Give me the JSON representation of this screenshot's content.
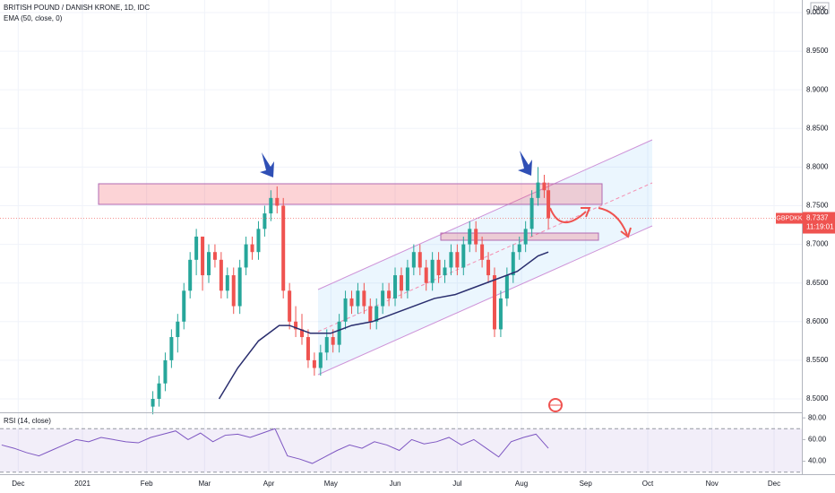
{
  "chart_data": {
    "type": "candlestick",
    "title": "BRITISH POUND / DANISH KRONE, 1D, IDC",
    "indicator": "EMA (50, close, 0)",
    "currency": "DKK",
    "symbol": "GBPDKK",
    "last_price": 8.7337,
    "countdown": "11:19:01",
    "up_color": "#26a69a",
    "down_color": "#ef5350",
    "grid": true,
    "xlim": [
      -39.8,
      347.4
    ],
    "xticks": [
      {
        "value": -31,
        "label": "Dec"
      },
      {
        "value": 0,
        "label": "2021"
      },
      {
        "value": 31,
        "label": "Feb"
      },
      {
        "value": 59,
        "label": "Mar"
      },
      {
        "value": 90,
        "label": "Apr"
      },
      {
        "value": 120,
        "label": "May"
      },
      {
        "value": 151,
        "label": "Jun"
      },
      {
        "value": 181,
        "label": "Jul"
      },
      {
        "value": 212,
        "label": "Aug"
      },
      {
        "value": 243,
        "label": "Sep"
      },
      {
        "value": 273,
        "label": "Oct"
      },
      {
        "value": 304,
        "label": "Nov"
      },
      {
        "value": 334,
        "label": "Dec"
      }
    ],
    "ylim": [
      8.4826,
      9.0162
    ],
    "yticks": [
      {
        "value": 8.5,
        "label": "8.5000"
      },
      {
        "value": 8.55,
        "label": "8.5500"
      },
      {
        "value": 8.6,
        "label": "8.6000"
      },
      {
        "value": 8.65,
        "label": "8.6500"
      },
      {
        "value": 8.7,
        "label": "8.7000"
      },
      {
        "value": 8.75,
        "label": "8.7500"
      },
      {
        "value": 8.8,
        "label": "8.8000"
      },
      {
        "value": 8.85,
        "label": "8.8500"
      },
      {
        "value": 8.9,
        "label": "8.9000"
      },
      {
        "value": 8.95,
        "label": "8.9500"
      },
      {
        "value": 9.0,
        "label": "9.0000"
      }
    ],
    "candles": [
      {
        "x": 34,
        "o": 8.49,
        "h": 8.51,
        "l": 8.48,
        "c": 8.5
      },
      {
        "x": 37,
        "o": 8.5,
        "h": 8.53,
        "l": 8.49,
        "c": 8.52
      },
      {
        "x": 40,
        "o": 8.52,
        "h": 8.56,
        "l": 8.51,
        "c": 8.55
      },
      {
        "x": 43,
        "o": 8.55,
        "h": 8.59,
        "l": 8.54,
        "c": 8.58
      },
      {
        "x": 46,
        "o": 8.58,
        "h": 8.61,
        "l": 8.56,
        "c": 8.6
      },
      {
        "x": 49,
        "o": 8.6,
        "h": 8.65,
        "l": 8.59,
        "c": 8.64
      },
      {
        "x": 52,
        "o": 8.64,
        "h": 8.69,
        "l": 8.63,
        "c": 8.68
      },
      {
        "x": 55,
        "o": 8.68,
        "h": 8.72,
        "l": 8.66,
        "c": 8.71
      },
      {
        "x": 58,
        "o": 8.71,
        "h": 8.71,
        "l": 8.64,
        "c": 8.66
      },
      {
        "x": 61,
        "o": 8.66,
        "h": 8.7,
        "l": 8.65,
        "c": 8.69
      },
      {
        "x": 64,
        "o": 8.69,
        "h": 8.7,
        "l": 8.67,
        "c": 8.68
      },
      {
        "x": 67,
        "o": 8.68,
        "h": 8.69,
        "l": 8.63,
        "c": 8.64
      },
      {
        "x": 70,
        "o": 8.64,
        "h": 8.67,
        "l": 8.63,
        "c": 8.66
      },
      {
        "x": 73,
        "o": 8.66,
        "h": 8.67,
        "l": 8.61,
        "c": 8.62
      },
      {
        "x": 76,
        "o": 8.62,
        "h": 8.68,
        "l": 8.61,
        "c": 8.67
      },
      {
        "x": 79,
        "o": 8.67,
        "h": 8.71,
        "l": 8.66,
        "c": 8.7
      },
      {
        "x": 82,
        "o": 8.7,
        "h": 8.71,
        "l": 8.68,
        "c": 8.69
      },
      {
        "x": 85,
        "o": 8.69,
        "h": 8.73,
        "l": 8.68,
        "c": 8.72
      },
      {
        "x": 88,
        "o": 8.72,
        "h": 8.75,
        "l": 8.71,
        "c": 8.74
      },
      {
        "x": 91,
        "o": 8.74,
        "h": 8.77,
        "l": 8.73,
        "c": 8.76
      },
      {
        "x": 94,
        "o": 8.76,
        "h": 8.775,
        "l": 8.74,
        "c": 8.75
      },
      {
        "x": 97,
        "o": 8.75,
        "h": 8.76,
        "l": 8.63,
        "c": 8.64
      },
      {
        "x": 100,
        "o": 8.64,
        "h": 8.65,
        "l": 8.59,
        "c": 8.6
      },
      {
        "x": 103,
        "o": 8.6,
        "h": 8.62,
        "l": 8.58,
        "c": 8.59
      },
      {
        "x": 106,
        "o": 8.59,
        "h": 8.61,
        "l": 8.57,
        "c": 8.58
      },
      {
        "x": 109,
        "o": 8.58,
        "h": 8.59,
        "l": 8.54,
        "c": 8.55
      },
      {
        "x": 112,
        "o": 8.55,
        "h": 8.56,
        "l": 8.53,
        "c": 8.54
      },
      {
        "x": 115,
        "o": 8.54,
        "h": 8.57,
        "l": 8.53,
        "c": 8.56
      },
      {
        "x": 118,
        "o": 8.56,
        "h": 8.59,
        "l": 8.55,
        "c": 8.58
      },
      {
        "x": 121,
        "o": 8.58,
        "h": 8.59,
        "l": 8.56,
        "c": 8.57
      },
      {
        "x": 124,
        "o": 8.57,
        "h": 8.61,
        "l": 8.56,
        "c": 8.6
      },
      {
        "x": 127,
        "o": 8.6,
        "h": 8.64,
        "l": 8.59,
        "c": 8.63
      },
      {
        "x": 130,
        "o": 8.63,
        "h": 8.64,
        "l": 8.61,
        "c": 8.62
      },
      {
        "x": 133,
        "o": 8.62,
        "h": 8.65,
        "l": 8.61,
        "c": 8.64
      },
      {
        "x": 136,
        "o": 8.64,
        "h": 8.65,
        "l": 8.61,
        "c": 8.62
      },
      {
        "x": 139,
        "o": 8.62,
        "h": 8.63,
        "l": 8.59,
        "c": 8.6
      },
      {
        "x": 142,
        "o": 8.6,
        "h": 8.63,
        "l": 8.59,
        "c": 8.62
      },
      {
        "x": 145,
        "o": 8.62,
        "h": 8.65,
        "l": 8.61,
        "c": 8.64
      },
      {
        "x": 148,
        "o": 8.64,
        "h": 8.65,
        "l": 8.62,
        "c": 8.63
      },
      {
        "x": 151,
        "o": 8.63,
        "h": 8.67,
        "l": 8.62,
        "c": 8.66
      },
      {
        "x": 154,
        "o": 8.66,
        "h": 8.67,
        "l": 8.63,
        "c": 8.64
      },
      {
        "x": 157,
        "o": 8.64,
        "h": 8.68,
        "l": 8.63,
        "c": 8.67
      },
      {
        "x": 160,
        "o": 8.67,
        "h": 8.7,
        "l": 8.66,
        "c": 8.69
      },
      {
        "x": 163,
        "o": 8.69,
        "h": 8.7,
        "l": 8.66,
        "c": 8.67
      },
      {
        "x": 166,
        "o": 8.67,
        "h": 8.68,
        "l": 8.64,
        "c": 8.65
      },
      {
        "x": 169,
        "o": 8.65,
        "h": 8.69,
        "l": 8.64,
        "c": 8.68
      },
      {
        "x": 172,
        "o": 8.68,
        "h": 8.69,
        "l": 8.65,
        "c": 8.66
      },
      {
        "x": 175,
        "o": 8.66,
        "h": 8.68,
        "l": 8.65,
        "c": 8.67
      },
      {
        "x": 178,
        "o": 8.67,
        "h": 8.7,
        "l": 8.66,
        "c": 8.69
      },
      {
        "x": 181,
        "o": 8.69,
        "h": 8.7,
        "l": 8.66,
        "c": 8.67
      },
      {
        "x": 184,
        "o": 8.67,
        "h": 8.71,
        "l": 8.66,
        "c": 8.7
      },
      {
        "x": 187,
        "o": 8.7,
        "h": 8.73,
        "l": 8.69,
        "c": 8.72
      },
      {
        "x": 190,
        "o": 8.72,
        "h": 8.73,
        "l": 8.69,
        "c": 8.7
      },
      {
        "x": 193,
        "o": 8.7,
        "h": 8.71,
        "l": 8.67,
        "c": 8.68
      },
      {
        "x": 196,
        "o": 8.68,
        "h": 8.69,
        "l": 8.65,
        "c": 8.66
      },
      {
        "x": 199,
        "o": 8.66,
        "h": 8.67,
        "l": 8.58,
        "c": 8.59
      },
      {
        "x": 202,
        "o": 8.59,
        "h": 8.64,
        "l": 8.58,
        "c": 8.63
      },
      {
        "x": 205,
        "o": 8.63,
        "h": 8.67,
        "l": 8.62,
        "c": 8.66
      },
      {
        "x": 208,
        "o": 8.66,
        "h": 8.7,
        "l": 8.65,
        "c": 8.69
      },
      {
        "x": 211,
        "o": 8.69,
        "h": 8.71,
        "l": 8.68,
        "c": 8.7
      },
      {
        "x": 214,
        "o": 8.7,
        "h": 8.73,
        "l": 8.69,
        "c": 8.72
      },
      {
        "x": 217,
        "o": 8.72,
        "h": 8.77,
        "l": 8.71,
        "c": 8.76
      },
      {
        "x": 220,
        "o": 8.76,
        "h": 8.8,
        "l": 8.75,
        "c": 8.78
      },
      {
        "x": 223,
        "o": 8.78,
        "h": 8.79,
        "l": 8.76,
        "c": 8.77
      },
      {
        "x": 225,
        "o": 8.77,
        "h": 8.78,
        "l": 8.72,
        "c": 8.7337
      }
    ],
    "ema": {
      "color": "#2a2e6e",
      "x": [
        66,
        75,
        85,
        95,
        100,
        110,
        120,
        130,
        140,
        150,
        160,
        170,
        180,
        190,
        200,
        210,
        220,
        225
      ],
      "values": [
        8.5,
        8.54,
        8.575,
        8.595,
        8.595,
        8.585,
        8.585,
        8.595,
        8.6,
        8.61,
        8.62,
        8.63,
        8.635,
        8.645,
        8.655,
        8.665,
        8.685,
        8.69
      ]
    },
    "rsi": {
      "title": "RSI (14, close)",
      "color": "#7e57c2",
      "ylim": [
        28.1,
        84.3
      ],
      "yticks": [
        {
          "value": 40,
          "label": "40.00"
        },
        {
          "value": 60,
          "label": "60.00"
        },
        {
          "value": 80,
          "label": "80.00"
        }
      ],
      "bands": [
        30,
        70
      ],
      "x": [
        -39,
        -33,
        -27,
        -21,
        -15,
        -9,
        -3,
        3,
        9,
        15,
        21,
        27,
        33,
        39,
        45,
        51,
        57,
        63,
        69,
        75,
        81,
        87,
        93,
        99,
        105,
        111,
        117,
        123,
        129,
        135,
        141,
        147,
        153,
        159,
        165,
        171,
        177,
        183,
        189,
        195,
        201,
        207,
        213,
        219,
        225
      ],
      "values": [
        55,
        52,
        48,
        45,
        50,
        55,
        60,
        58,
        62,
        60,
        58,
        57,
        62,
        65,
        68,
        60,
        66,
        58,
        64,
        65,
        62,
        66,
        70,
        45,
        42,
        38,
        44,
        50,
        55,
        52,
        58,
        55,
        50,
        60,
        56,
        58,
        62,
        55,
        60,
        52,
        44,
        58,
        62,
        65,
        52
      ]
    }
  }
}
